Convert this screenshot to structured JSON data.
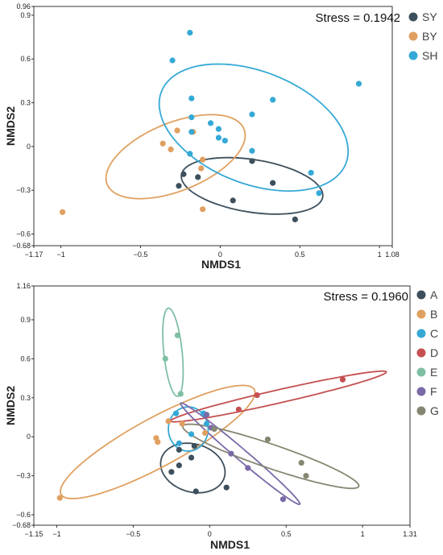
{
  "chart_data": [
    {
      "type": "scatter",
      "xlabel": "NMDS1",
      "ylabel": "NMDS2",
      "xlim": [
        -1.17,
        1.08
      ],
      "ylim": [
        -0.68,
        0.96
      ],
      "xticks": [
        -1.17,
        -1,
        -0.5,
        0,
        0.5,
        1,
        1.08
      ],
      "xtick_labels": [
        "−1.17",
        "−1",
        "−0.5",
        "0",
        "0.5",
        "1",
        "1.08"
      ],
      "yticks": [
        -0.68,
        -0.6,
        -0.3,
        0,
        0.3,
        0.6,
        0.9,
        0.96
      ],
      "ytick_labels": [
        "−0.68",
        "−0.6",
        "−0.3",
        "0",
        "0.3",
        "0.6",
        "0.9",
        "0.96"
      ],
      "annotation": "Stress = 0.1942",
      "legend_position": "top-right",
      "series": [
        {
          "name": "SY",
          "color": "#3d4f5c",
          "points": [
            [
              -0.26,
              -0.27
            ],
            [
              -0.23,
              -0.19
            ],
            [
              -0.14,
              -0.21
            ],
            [
              0.08,
              -0.37
            ],
            [
              0.2,
              -0.1
            ],
            [
              0.33,
              -0.25
            ],
            [
              0.47,
              -0.5
            ]
          ],
          "ellipse": {
            "cx": 0.2,
            "cy": -0.27,
            "rx": 0.45,
            "ry": 0.18,
            "angle": -10
          }
        },
        {
          "name": "BY",
          "color": "#e0a060",
          "points": [
            [
              -0.99,
              -0.45
            ],
            [
              -0.36,
              0.02
            ],
            [
              -0.31,
              -0.02
            ],
            [
              -0.27,
              0.11
            ],
            [
              -0.17,
              0.1
            ],
            [
              -0.12,
              -0.15
            ],
            [
              -0.11,
              -0.09
            ],
            [
              -0.11,
              -0.43
            ]
          ],
          "ellipse": {
            "cx": -0.28,
            "cy": -0.07,
            "rx": 0.47,
            "ry": 0.23,
            "angle": 25
          }
        },
        {
          "name": "SH",
          "color": "#35a9d6",
          "points": [
            [
              -0.19,
              0.78
            ],
            [
              -0.3,
              0.59
            ],
            [
              -0.18,
              0.33
            ],
            [
              -0.18,
              0.2
            ],
            [
              -0.18,
              0.1
            ],
            [
              -0.19,
              -0.05
            ],
            [
              -0.06,
              0.16
            ],
            [
              -0.01,
              0.12
            ],
            [
              -0.01,
              0.06
            ],
            [
              0.03,
              0.04
            ],
            [
              0.2,
              0.22
            ],
            [
              0.2,
              -0.03
            ],
            [
              0.33,
              0.32
            ],
            [
              0.57,
              -0.18
            ],
            [
              0.62,
              -0.32
            ],
            [
              0.87,
              0.43
            ]
          ],
          "ellipse": {
            "cx": 0.21,
            "cy": 0.13,
            "rx": 0.63,
            "ry": 0.38,
            "angle": -25
          }
        }
      ]
    },
    {
      "type": "scatter",
      "xlabel": "NMDS1",
      "ylabel": "NMDS2",
      "xlim": [
        -1.15,
        1.31
      ],
      "ylim": [
        -0.68,
        1.16
      ],
      "xticks": [
        -1.15,
        -1,
        -0.5,
        0,
        0.5,
        1,
        1.31
      ],
      "xtick_labels": [
        "−1.15",
        "−1",
        "−0.5",
        "0",
        "0.5",
        "1",
        "1.31"
      ],
      "yticks": [
        -0.68,
        -0.6,
        -0.3,
        0,
        0.3,
        0.6,
        0.9,
        1.16
      ],
      "ytick_labels": [
        "−0.68",
        "−0.6",
        "−0.3",
        "0",
        "0.3",
        "0.6",
        "0.9",
        "1.16"
      ],
      "annotation": "Stress = 0.1960",
      "legend_position": "top-right",
      "series": [
        {
          "name": "A",
          "color": "#3d4f5c",
          "points": [
            [
              -0.25,
              -0.27
            ],
            [
              -0.2,
              -0.22
            ],
            [
              -0.2,
              -0.1
            ],
            [
              -0.12,
              -0.16
            ],
            [
              -0.1,
              -0.07
            ],
            [
              -0.09,
              -0.42
            ],
            [
              0.11,
              -0.39
            ]
          ],
          "ellipse": {
            "cx": -0.11,
            "cy": -0.24,
            "rx": 0.22,
            "ry": 0.18,
            "angle": -30
          }
        },
        {
          "name": "B",
          "color": "#e0a060",
          "points": [
            [
              -0.98,
              -0.47
            ],
            [
              -0.35,
              -0.01
            ],
            [
              -0.34,
              -0.04
            ],
            [
              -0.27,
              0.12
            ],
            [
              -0.18,
              0.1
            ],
            [
              -0.03,
              0.03
            ]
          ],
          "ellipse": {
            "cx": -0.34,
            "cy": -0.04,
            "rx": 0.75,
            "ry": 0.18,
            "angle": 33
          }
        },
        {
          "name": "C",
          "color": "#35a9d6",
          "points": [
            [
              -0.22,
              0.18
            ],
            [
              -0.2,
              -0.05
            ],
            [
              -0.12,
              0.02
            ],
            [
              -0.04,
              0.18
            ],
            [
              -0.02,
              0.1
            ]
          ],
          "ellipse": {
            "cx": -0.14,
            "cy": 0.06,
            "rx": 0.13,
            "ry": 0.17,
            "angle": 0
          }
        },
        {
          "name": "D",
          "color": "#c45050",
          "points": [
            [
              0.19,
              0.21
            ],
            [
              0.31,
              0.32
            ],
            [
              0.87,
              0.44
            ]
          ],
          "ellipse": {
            "cx": 0.45,
            "cy": 0.31,
            "rx": 0.73,
            "ry": 0.05,
            "angle": 15
          }
        },
        {
          "name": "E",
          "color": "#7fbfa4",
          "points": [
            [
              -0.29,
              0.6
            ],
            [
              -0.21,
              0.78
            ],
            [
              -0.19,
              0.33
            ]
          ],
          "ellipse": {
            "cx": -0.24,
            "cy": 0.65,
            "rx": 0.34,
            "ry": 0.06,
            "angle": 95
          }
        },
        {
          "name": "F",
          "color": "#7a6aa8",
          "points": [
            [
              -0.02,
              0.17
            ],
            [
              0.01,
              0.07
            ],
            [
              0.14,
              -0.13
            ],
            [
              0.25,
              -0.24
            ],
            [
              0.48,
              -0.48
            ]
          ],
          "ellipse": {
            "cx": 0.2,
            "cy": -0.13,
            "rx": 0.55,
            "ry": 0.04,
            "angle": -45
          }
        },
        {
          "name": "G",
          "color": "#868672",
          "points": [
            [
              0.03,
              0.06
            ],
            [
              0.38,
              -0.02
            ],
            [
              0.6,
              -0.2
            ],
            [
              0.63,
              -0.3
            ]
          ],
          "ellipse": {
            "cx": 0.4,
            "cy": -0.15,
            "rx": 0.62,
            "ry": 0.09,
            "angle": -22
          }
        }
      ]
    }
  ]
}
